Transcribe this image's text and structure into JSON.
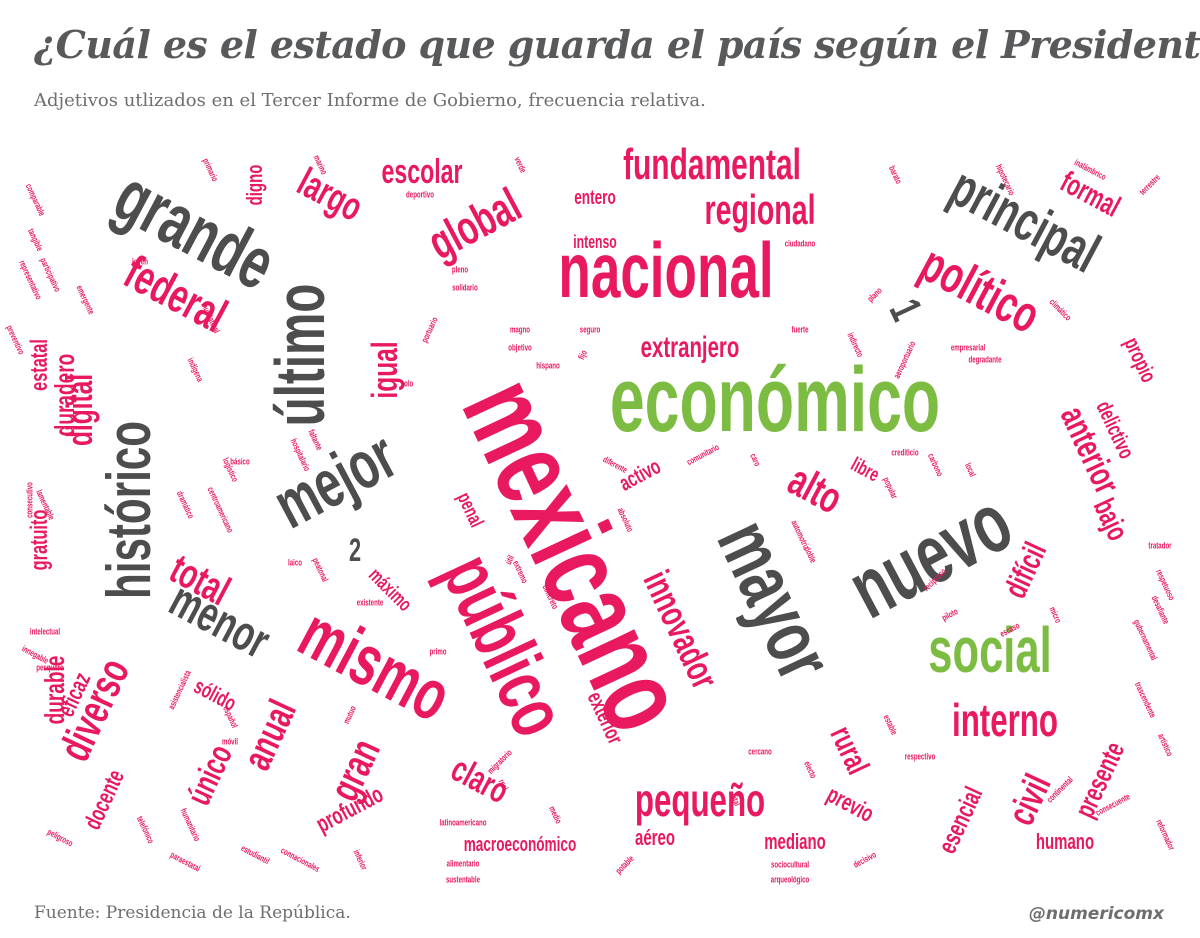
{
  "header": {
    "title": "¿Cuál es el estado que guarda el país según el Presidente?",
    "subtitle": "Adjetivos utlizados en el Tercer Informe de Gobierno, frecuencia relativa."
  },
  "footer": {
    "source": "Fuente: Presidencia de la República.",
    "handle": "@numericomx"
  },
  "colors": {
    "magenta": "#e8195e",
    "gray": "#4d4d4d",
    "green": "#7cbc42",
    "text": "#58595b"
  },
  "words": [
    {
      "text": "mexicano",
      "color": "magenta"
    },
    {
      "text": "económico",
      "color": "green"
    },
    {
      "text": "nacional",
      "color": "magenta"
    },
    {
      "text": "público",
      "color": "magenta"
    },
    {
      "text": "mayor",
      "color": "gray"
    },
    {
      "text": "nuevo",
      "color": "gray"
    },
    {
      "text": "social",
      "color": "green"
    },
    {
      "text": "grande",
      "color": "gray"
    },
    {
      "text": "último",
      "color": "gray"
    },
    {
      "text": "mejor",
      "color": "gray"
    },
    {
      "text": "mismo",
      "color": "magenta"
    },
    {
      "text": "histórico",
      "color": "gray"
    },
    {
      "text": "principal",
      "color": "gray"
    },
    {
      "text": "político",
      "color": "magenta"
    },
    {
      "text": "fundamental",
      "color": "magenta"
    },
    {
      "text": "regional",
      "color": "magenta"
    },
    {
      "text": "global",
      "color": "magenta"
    },
    {
      "text": "federal",
      "color": "magenta"
    },
    {
      "text": "menor",
      "color": "gray"
    },
    {
      "text": "total",
      "color": "magenta"
    },
    {
      "text": "interno",
      "color": "magenta"
    },
    {
      "text": "pequeño",
      "color": "magenta"
    },
    {
      "text": "innovador",
      "color": "magenta"
    },
    {
      "text": "alto",
      "color": "magenta"
    },
    {
      "text": "anual",
      "color": "magenta"
    },
    {
      "text": "diverso",
      "color": "magenta"
    },
    {
      "text": "largo",
      "color": "magenta"
    },
    {
      "text": "escolar",
      "color": "magenta"
    },
    {
      "text": "digital",
      "color": "magenta"
    },
    {
      "text": "igual",
      "color": "magenta"
    },
    {
      "text": "anterior",
      "color": "magenta"
    },
    {
      "text": "gran",
      "color": "magenta"
    },
    {
      "text": "claro",
      "color": "magenta"
    },
    {
      "text": "civil",
      "color": "magenta"
    },
    {
      "text": "rural",
      "color": "magenta"
    },
    {
      "text": "bajo",
      "color": "magenta"
    },
    {
      "text": "difícil",
      "color": "magenta"
    },
    {
      "text": "único",
      "color": "magenta"
    },
    {
      "text": "extranjero",
      "color": "magenta"
    },
    {
      "text": "formal",
      "color": "magenta"
    },
    {
      "text": "durable",
      "color": "magenta"
    },
    {
      "text": "macroeconómico",
      "color": "magenta"
    },
    {
      "text": "mediano",
      "color": "magenta"
    },
    {
      "text": "presente",
      "color": "magenta"
    },
    {
      "text": "esencial",
      "color": "magenta"
    },
    {
      "text": "humano",
      "color": "magenta"
    },
    {
      "text": "eficaz",
      "color": "magenta"
    },
    {
      "text": "duradero",
      "color": "magenta"
    },
    {
      "text": "estatal",
      "color": "magenta"
    },
    {
      "text": "gratuito",
      "color": "magenta"
    },
    {
      "text": "docente",
      "color": "magenta"
    },
    {
      "text": "profundo",
      "color": "magenta"
    },
    {
      "text": "sólido",
      "color": "magenta"
    },
    {
      "text": "propio",
      "color": "magenta"
    },
    {
      "text": "delictivo",
      "color": "magenta"
    },
    {
      "text": "previo",
      "color": "magenta"
    },
    {
      "text": "aéreo",
      "color": "magenta"
    },
    {
      "text": "exterior",
      "color": "magenta"
    },
    {
      "text": "activo",
      "color": "magenta"
    },
    {
      "text": "libre",
      "color": "magenta"
    },
    {
      "text": "intenso",
      "color": "magenta"
    },
    {
      "text": "entero",
      "color": "magenta"
    },
    {
      "text": "máximo",
      "color": "magenta"
    },
    {
      "text": "digno",
      "color": "magenta"
    },
    {
      "text": "penal",
      "color": "magenta"
    },
    {
      "text": "1",
      "color": "gray"
    },
    {
      "text": "2",
      "color": "gray"
    },
    {
      "text": "comparable",
      "color": "magenta"
    },
    {
      "text": "tangible",
      "color": "magenta"
    },
    {
      "text": "representativo",
      "color": "magenta"
    },
    {
      "text": "participativo",
      "color": "magenta"
    },
    {
      "text": "primario",
      "color": "magenta"
    },
    {
      "text": "marino",
      "color": "magenta"
    },
    {
      "text": "verde",
      "color": "magenta"
    },
    {
      "text": "deportivo",
      "color": "magenta"
    },
    {
      "text": "joven",
      "color": "magenta"
    },
    {
      "text": "emergente",
      "color": "magenta"
    },
    {
      "text": "multilateral",
      "color": "magenta"
    },
    {
      "text": "preventivo",
      "color": "magenta"
    },
    {
      "text": "indígena",
      "color": "magenta"
    },
    {
      "text": "pleno",
      "color": "magenta"
    },
    {
      "text": "solidario",
      "color": "magenta"
    },
    {
      "text": "portuario",
      "color": "magenta"
    },
    {
      "text": "magno",
      "color": "magenta"
    },
    {
      "text": "seguro",
      "color": "magenta"
    },
    {
      "text": "fuerte",
      "color": "magenta"
    },
    {
      "text": "objetivo",
      "color": "magenta"
    },
    {
      "text": "fijo",
      "color": "magenta"
    },
    {
      "text": "hispano",
      "color": "magenta"
    },
    {
      "text": "ciudadano",
      "color": "magenta"
    },
    {
      "text": "barato",
      "color": "magenta"
    },
    {
      "text": "hipotecario",
      "color": "magenta"
    },
    {
      "text": "inalámbrico",
      "color": "magenta"
    },
    {
      "text": "terrestre",
      "color": "magenta"
    },
    {
      "text": "plano",
      "color": "magenta"
    },
    {
      "text": "climático",
      "color": "magenta"
    },
    {
      "text": "aeroportuario",
      "color": "magenta"
    },
    {
      "text": "indirecto",
      "color": "magenta"
    },
    {
      "text": "empresarial",
      "color": "magenta"
    },
    {
      "text": "degradante",
      "color": "magenta"
    },
    {
      "text": "solo",
      "color": "magenta"
    },
    {
      "text": "faltante",
      "color": "magenta"
    },
    {
      "text": "hospitalario",
      "color": "magenta"
    },
    {
      "text": "logístico",
      "color": "magenta"
    },
    {
      "text": "básico",
      "color": "magenta"
    },
    {
      "text": "centroamericano",
      "color": "magenta"
    },
    {
      "text": "dramático",
      "color": "magenta"
    },
    {
      "text": "consecutivo",
      "color": "magenta"
    },
    {
      "text": "lamentable",
      "color": "magenta"
    },
    {
      "text": "laico",
      "color": "magenta"
    },
    {
      "text": "peatonal",
      "color": "magenta"
    },
    {
      "text": "existente",
      "color": "magenta"
    },
    {
      "text": "útil",
      "color": "magenta"
    },
    {
      "text": "extremo",
      "color": "magenta"
    },
    {
      "text": "concreto",
      "color": "magenta"
    },
    {
      "text": "absoluto",
      "color": "magenta"
    },
    {
      "text": "diferente",
      "color": "magenta"
    },
    {
      "text": "comunitario",
      "color": "magenta"
    },
    {
      "text": "caro",
      "color": "magenta"
    },
    {
      "text": "crediticio",
      "color": "magenta"
    },
    {
      "text": "popular",
      "color": "magenta"
    },
    {
      "text": "carbono",
      "color": "magenta"
    },
    {
      "text": "local",
      "color": "magenta"
    },
    {
      "text": "automotriz",
      "color": "magenta"
    },
    {
      "text": "doble",
      "color": "magenta"
    },
    {
      "text": "tratador",
      "color": "magenta"
    },
    {
      "text": "recíproco",
      "color": "magenta"
    },
    {
      "text": "piloto",
      "color": "magenta"
    },
    {
      "text": "escaso",
      "color": "magenta"
    },
    {
      "text": "micro",
      "color": "magenta"
    },
    {
      "text": "respetuoso",
      "color": "magenta"
    },
    {
      "text": "intelectual",
      "color": "magenta"
    },
    {
      "text": "innegable",
      "color": "magenta"
    },
    {
      "text": "pesquero",
      "color": "magenta"
    },
    {
      "text": "asistencialista",
      "color": "magenta"
    },
    {
      "text": "primo",
      "color": "magenta"
    },
    {
      "text": "mutuo",
      "color": "magenta"
    },
    {
      "text": "español",
      "color": "magenta"
    },
    {
      "text": "móvil",
      "color": "magenta"
    },
    {
      "text": "migratorio",
      "color": "magenta"
    },
    {
      "text": "real",
      "color": "magenta"
    },
    {
      "text": "medio",
      "color": "magenta"
    },
    {
      "text": "latinoamericano",
      "color": "magenta"
    },
    {
      "text": "alimentario",
      "color": "magenta"
    },
    {
      "text": "sustentable",
      "color": "magenta"
    },
    {
      "text": "potable",
      "color": "magenta"
    },
    {
      "text": "vital",
      "color": "magenta"
    },
    {
      "text": "cercano",
      "color": "magenta"
    },
    {
      "text": "electo",
      "color": "magenta"
    },
    {
      "text": "sociocultural",
      "color": "magenta"
    },
    {
      "text": "arqueológico",
      "color": "magenta"
    },
    {
      "text": "decisivo",
      "color": "magenta"
    },
    {
      "text": "estable",
      "color": "magenta"
    },
    {
      "text": "respectivo",
      "color": "magenta"
    },
    {
      "text": "continental",
      "color": "magenta"
    },
    {
      "text": "consecuente",
      "color": "magenta"
    },
    {
      "text": "reformador",
      "color": "magenta"
    },
    {
      "text": "artístico",
      "color": "magenta"
    },
    {
      "text": "trascendente",
      "color": "magenta"
    },
    {
      "text": "gubernamental",
      "color": "magenta"
    },
    {
      "text": "desafiante",
      "color": "magenta"
    },
    {
      "text": "peligroso",
      "color": "magenta"
    },
    {
      "text": "telefónico",
      "color": "magenta"
    },
    {
      "text": "humanitario",
      "color": "magenta"
    },
    {
      "text": "paraestatal",
      "color": "magenta"
    },
    {
      "text": "estudiantil",
      "color": "magenta"
    },
    {
      "text": "connacionales",
      "color": "magenta"
    },
    {
      "text": "inferior",
      "color": "magenta"
    }
  ]
}
